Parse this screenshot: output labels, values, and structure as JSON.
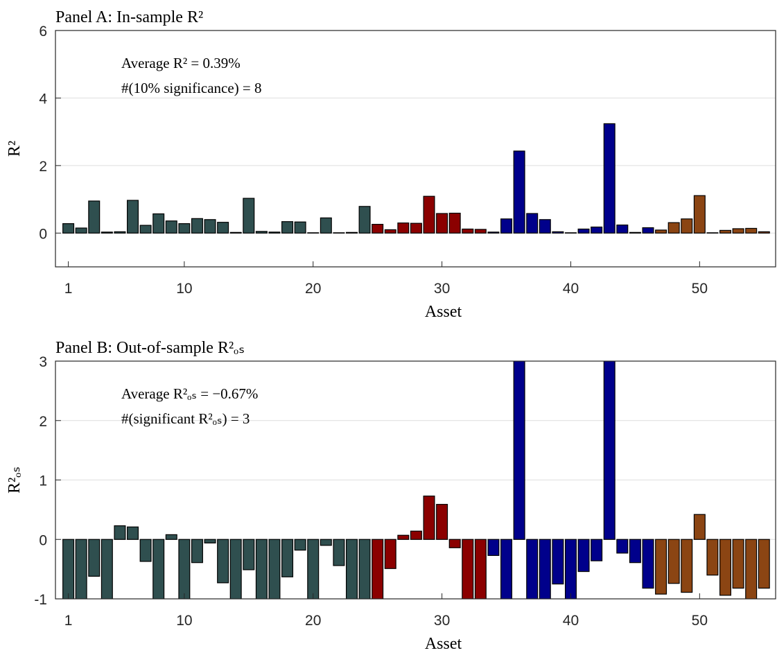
{
  "chart_data": [
    {
      "type": "bar",
      "title": "Panel A: In-sample R²",
      "x_label": "Asset",
      "y_label": "R²",
      "annotations": [
        "Average R² = 0.39%",
        "#(10% significance) = 8"
      ],
      "x": [
        1,
        2,
        3,
        4,
        5,
        6,
        7,
        8,
        9,
        10,
        11,
        12,
        13,
        14,
        15,
        16,
        17,
        18,
        19,
        20,
        21,
        22,
        23,
        24,
        25,
        26,
        27,
        28,
        29,
        30,
        31,
        32,
        33,
        34,
        35,
        36,
        37,
        38,
        39,
        40,
        41,
        42,
        43,
        44,
        45,
        46,
        47,
        48,
        49,
        50,
        51,
        52,
        53,
        54,
        55
      ],
      "values": [
        0.28,
        0.15,
        0.95,
        0.03,
        0.04,
        0.97,
        0.23,
        0.57,
        0.36,
        0.28,
        0.43,
        0.4,
        0.32,
        0.02,
        1.03,
        0.05,
        0.03,
        0.34,
        0.33,
        0.01,
        0.45,
        0.01,
        0.02,
        0.79,
        0.26,
        0.1,
        0.3,
        0.29,
        1.09,
        0.58,
        0.59,
        0.12,
        0.11,
        0.03,
        0.42,
        2.43,
        0.58,
        0.4,
        0.04,
        0.01,
        0.12,
        0.18,
        3.24,
        0.24,
        0.02,
        0.16,
        0.09,
        0.31,
        0.42,
        1.11,
        0.01,
        0.08,
        0.13,
        0.14,
        0.04
      ],
      "bar_colors": [
        "#2f4f4f",
        "#2f4f4f",
        "#2f4f4f",
        "#2f4f4f",
        "#2f4f4f",
        "#2f4f4f",
        "#2f4f4f",
        "#2f4f4f",
        "#2f4f4f",
        "#2f4f4f",
        "#2f4f4f",
        "#2f4f4f",
        "#2f4f4f",
        "#2f4f4f",
        "#2f4f4f",
        "#2f4f4f",
        "#2f4f4f",
        "#2f4f4f",
        "#2f4f4f",
        "#2f4f4f",
        "#2f4f4f",
        "#2f4f4f",
        "#2f4f4f",
        "#2f4f4f",
        "#8b0000",
        "#8b0000",
        "#8b0000",
        "#8b0000",
        "#8b0000",
        "#8b0000",
        "#8b0000",
        "#8b0000",
        "#8b0000",
        "#00008b",
        "#00008b",
        "#00008b",
        "#00008b",
        "#00008b",
        "#00008b",
        "#00008b",
        "#00008b",
        "#00008b",
        "#00008b",
        "#00008b",
        "#00008b",
        "#00008b",
        "#8b4513",
        "#8b4513",
        "#8b4513",
        "#8b4513",
        "#8b4513",
        "#8b4513",
        "#8b4513",
        "#8b4513",
        "#8b4513"
      ],
      "xlim": [
        0,
        55.9
      ],
      "xticks": [
        1,
        10,
        20,
        30,
        40,
        50
      ],
      "ylim": [
        -1,
        6
      ],
      "yticks": [
        0,
        2,
        4,
        6
      ],
      "grid": true
    },
    {
      "type": "bar",
      "title": "Panel B: Out-of-sample R²ₒₛ",
      "x_label": "Asset",
      "y_label": "R²ₒₛ",
      "annotations": [
        "Average R²ₒₛ = −0.67%",
        "#(significant R²ₒₛ) = 3"
      ],
      "x": [
        1,
        2,
        3,
        4,
        5,
        6,
        7,
        8,
        9,
        10,
        11,
        12,
        13,
        14,
        15,
        16,
        17,
        18,
        19,
        20,
        21,
        22,
        23,
        24,
        25,
        26,
        27,
        28,
        29,
        30,
        31,
        32,
        33,
        34,
        35,
        36,
        37,
        38,
        39,
        40,
        41,
        42,
        43,
        44,
        45,
        46,
        47,
        48,
        49,
        50,
        51,
        52,
        53,
        54,
        55
      ],
      "values": [
        -1.2,
        -1.2,
        -0.62,
        -1.2,
        0.23,
        0.21,
        -0.37,
        -1.2,
        0.08,
        -1.2,
        -0.39,
        -0.06,
        -0.73,
        -1.2,
        -0.51,
        -1.2,
        -1.2,
        -0.63,
        -0.18,
        -1.2,
        -0.1,
        -0.44,
        -1.2,
        -1.2,
        -1.2,
        -0.49,
        0.07,
        0.14,
        0.73,
        0.59,
        -0.14,
        -1.2,
        -1.2,
        -0.27,
        -1.2,
        3.5,
        -1.2,
        -1.2,
        -0.75,
        -1.2,
        -0.54,
        -0.36,
        3.5,
        -0.23,
        -0.39,
        -0.82,
        -0.92,
        -0.74,
        -0.89,
        0.42,
        -0.6,
        -0.94,
        -0.82,
        -1.2,
        -0.82
      ],
      "bar_colors": [
        "#2f4f4f",
        "#2f4f4f",
        "#2f4f4f",
        "#2f4f4f",
        "#2f4f4f",
        "#2f4f4f",
        "#2f4f4f",
        "#2f4f4f",
        "#2f4f4f",
        "#2f4f4f",
        "#2f4f4f",
        "#2f4f4f",
        "#2f4f4f",
        "#2f4f4f",
        "#2f4f4f",
        "#2f4f4f",
        "#2f4f4f",
        "#2f4f4f",
        "#2f4f4f",
        "#2f4f4f",
        "#2f4f4f",
        "#2f4f4f",
        "#2f4f4f",
        "#2f4f4f",
        "#8b0000",
        "#8b0000",
        "#8b0000",
        "#8b0000",
        "#8b0000",
        "#8b0000",
        "#8b0000",
        "#8b0000",
        "#8b0000",
        "#00008b",
        "#00008b",
        "#00008b",
        "#00008b",
        "#00008b",
        "#00008b",
        "#00008b",
        "#00008b",
        "#00008b",
        "#00008b",
        "#00008b",
        "#00008b",
        "#00008b",
        "#8b4513",
        "#8b4513",
        "#8b4513",
        "#8b4513",
        "#8b4513",
        "#8b4513",
        "#8b4513",
        "#8b4513",
        "#8b4513"
      ],
      "xlim": [
        0,
        55.9
      ],
      "xticks": [
        1,
        10,
        20,
        30,
        40,
        50
      ],
      "ylim": [
        -1,
        3
      ],
      "yticks": [
        -1,
        0,
        1,
        2,
        3
      ],
      "grid": true
    }
  ]
}
